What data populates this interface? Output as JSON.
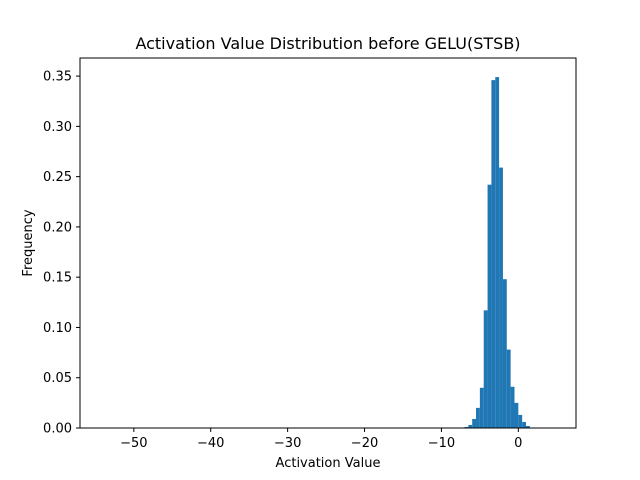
{
  "chart_data": {
    "type": "bar",
    "title": "Activation Value Distribution before GELU(STSB)",
    "xlabel": "Activation Value",
    "ylabel": "Frequency",
    "xlim": [
      -57.0,
      7.5
    ],
    "ylim": [
      0,
      0.368
    ],
    "xticks": [
      -50,
      -40,
      -30,
      -20,
      -10,
      0
    ],
    "xtick_labels": [
      "−50",
      "−40",
      "−30",
      "−20",
      "−10",
      "0"
    ],
    "yticks": [
      0.0,
      0.05,
      0.1,
      0.15,
      0.2,
      0.25,
      0.3,
      0.35
    ],
    "ytick_labels": [
      "0.00",
      "0.05",
      "0.10",
      "0.15",
      "0.20",
      "0.25",
      "0.30",
      "0.35"
    ],
    "bin_width": 0.5,
    "bins": [
      {
        "x": -55.0,
        "value": 0.0002
      },
      {
        "x": -7.0,
        "value": 0.001
      },
      {
        "x": -6.5,
        "value": 0.003
      },
      {
        "x": -6.0,
        "value": 0.009
      },
      {
        "x": -5.5,
        "value": 0.02
      },
      {
        "x": -5.0,
        "value": 0.04
      },
      {
        "x": -4.5,
        "value": 0.117
      },
      {
        "x": -4.0,
        "value": 0.242
      },
      {
        "x": -3.5,
        "value": 0.346
      },
      {
        "x": -3.0,
        "value": 0.349
      },
      {
        "x": -2.5,
        "value": 0.259
      },
      {
        "x": -2.0,
        "value": 0.148
      },
      {
        "x": -1.5,
        "value": 0.078
      },
      {
        "x": -1.0,
        "value": 0.041
      },
      {
        "x": -0.5,
        "value": 0.025
      },
      {
        "x": 0.0,
        "value": 0.013
      },
      {
        "x": 0.5,
        "value": 0.006
      },
      {
        "x": 1.0,
        "value": 0.002
      },
      {
        "x": 1.5,
        "value": 0.0005
      }
    ],
    "bar_color": "#1f77b4",
    "grid": false,
    "legend": false
  }
}
